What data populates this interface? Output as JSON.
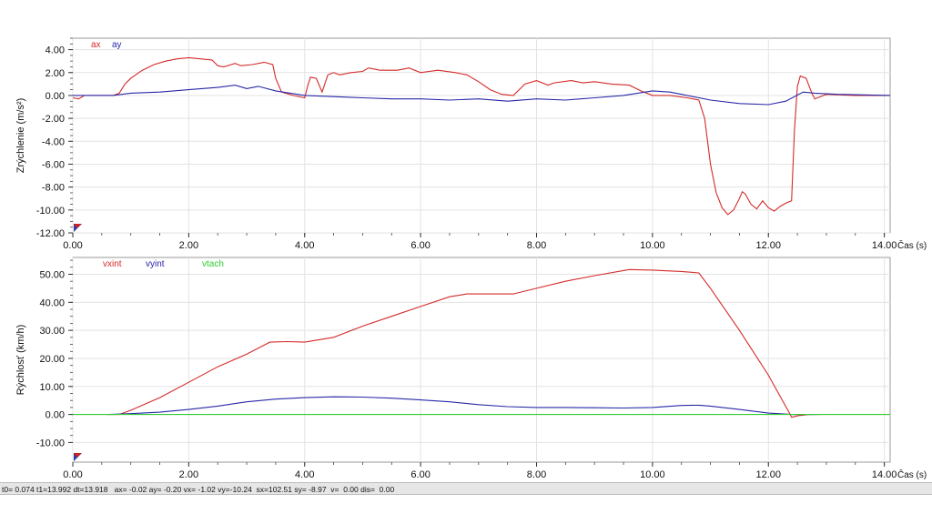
{
  "chart_data": [
    {
      "type": "line",
      "ylabel": "Zrýchlenie",
      "ylabel_unit": "(m/s²)",
      "xlabel": "Čas (s)",
      "xlim": [
        0,
        14.1
      ],
      "ylim": [
        -12,
        5
      ],
      "xticks": [
        0,
        2,
        4,
        6,
        8,
        10,
        12,
        14
      ],
      "xtick_labels": [
        "0.00",
        "2.00",
        "4.00",
        "6.00",
        "8.00",
        "10.00",
        "12.00",
        "14.00"
      ],
      "yticks": [
        -12,
        -10,
        -8,
        -6,
        -4,
        -2,
        0,
        2,
        4
      ],
      "ytick_labels": [
        "-12.00",
        "-10.00",
        "-8.00",
        "-6.00",
        "-4.00",
        "-2.00",
        "0.00",
        "2.00",
        "4.00"
      ],
      "grid": true,
      "legend_position": "top-left",
      "series": [
        {
          "name": "ax",
          "color": "#d42a2a",
          "points": [
            [
              0,
              -0.2
            ],
            [
              0.1,
              -0.3
            ],
            [
              0.2,
              0.0
            ],
            [
              0.7,
              0.0
            ],
            [
              0.8,
              0.2
            ],
            [
              0.9,
              1.0
            ],
            [
              1.0,
              1.5
            ],
            [
              1.2,
              2.2
            ],
            [
              1.4,
              2.7
            ],
            [
              1.6,
              3.0
            ],
            [
              1.8,
              3.2
            ],
            [
              2.0,
              3.3
            ],
            [
              2.2,
              3.2
            ],
            [
              2.4,
              3.1
            ],
            [
              2.5,
              2.6
            ],
            [
              2.6,
              2.5
            ],
            [
              2.8,
              2.8
            ],
            [
              2.9,
              2.6
            ],
            [
              3.1,
              2.7
            ],
            [
              3.3,
              2.9
            ],
            [
              3.45,
              2.7
            ],
            [
              3.5,
              1.5
            ],
            [
              3.6,
              0.3
            ],
            [
              3.8,
              0.0
            ],
            [
              4.0,
              -0.2
            ],
            [
              4.05,
              0.8
            ],
            [
              4.1,
              1.6
            ],
            [
              4.2,
              1.5
            ],
            [
              4.3,
              0.3
            ],
            [
              4.4,
              1.8
            ],
            [
              4.5,
              2.0
            ],
            [
              4.6,
              1.8
            ],
            [
              4.8,
              2.0
            ],
            [
              5.0,
              2.1
            ],
            [
              5.1,
              2.4
            ],
            [
              5.3,
              2.2
            ],
            [
              5.6,
              2.2
            ],
            [
              5.8,
              2.4
            ],
            [
              6.0,
              2.0
            ],
            [
              6.3,
              2.2
            ],
            [
              6.6,
              2.0
            ],
            [
              6.8,
              1.8
            ],
            [
              7.0,
              1.2
            ],
            [
              7.2,
              0.5
            ],
            [
              7.4,
              0.1
            ],
            [
              7.6,
              0.0
            ],
            [
              7.8,
              1.0
            ],
            [
              8.0,
              1.3
            ],
            [
              8.2,
              0.9
            ],
            [
              8.3,
              1.1
            ],
            [
              8.6,
              1.3
            ],
            [
              8.8,
              1.1
            ],
            [
              9.0,
              1.2
            ],
            [
              9.3,
              1.0
            ],
            [
              9.6,
              0.9
            ],
            [
              9.8,
              0.4
            ],
            [
              10.0,
              0.0
            ],
            [
              10.3,
              0.0
            ],
            [
              10.6,
              -0.2
            ],
            [
              10.8,
              -0.4
            ],
            [
              10.9,
              -2.0
            ],
            [
              11.0,
              -6.0
            ],
            [
              11.1,
              -8.5
            ],
            [
              11.2,
              -9.8
            ],
            [
              11.3,
              -10.4
            ],
            [
              11.4,
              -10.0
            ],
            [
              11.5,
              -9.0
            ],
            [
              11.55,
              -8.4
            ],
            [
              11.6,
              -8.6
            ],
            [
              11.7,
              -9.5
            ],
            [
              11.8,
              -9.9
            ],
            [
              11.9,
              -9.2
            ],
            [
              12.0,
              -9.8
            ],
            [
              12.1,
              -10.1
            ],
            [
              12.2,
              -9.7
            ],
            [
              12.3,
              -9.4
            ],
            [
              12.4,
              -9.2
            ],
            [
              12.45,
              -3.0
            ],
            [
              12.5,
              0.8
            ],
            [
              12.55,
              1.7
            ],
            [
              12.65,
              1.5
            ],
            [
              12.75,
              0.2
            ],
            [
              12.8,
              -0.3
            ],
            [
              13.0,
              0.1
            ],
            [
              13.5,
              0.0
            ],
            [
              14.1,
              0.0
            ]
          ]
        },
        {
          "name": "ay",
          "color": "#2828a8",
          "points": [
            [
              0,
              0.0
            ],
            [
              0.7,
              0.0
            ],
            [
              1.0,
              0.2
            ],
            [
              1.5,
              0.3
            ],
            [
              2.0,
              0.5
            ],
            [
              2.5,
              0.7
            ],
            [
              2.8,
              0.9
            ],
            [
              3.0,
              0.6
            ],
            [
              3.2,
              0.8
            ],
            [
              3.5,
              0.4
            ],
            [
              4.0,
              0.0
            ],
            [
              4.5,
              -0.1
            ],
            [
              5.0,
              -0.2
            ],
            [
              5.5,
              -0.3
            ],
            [
              6.0,
              -0.3
            ],
            [
              6.5,
              -0.4
            ],
            [
              7.0,
              -0.3
            ],
            [
              7.5,
              -0.5
            ],
            [
              8.0,
              -0.3
            ],
            [
              8.5,
              -0.4
            ],
            [
              9.0,
              -0.2
            ],
            [
              9.5,
              0.0
            ],
            [
              10.0,
              0.4
            ],
            [
              10.3,
              0.3
            ],
            [
              10.5,
              0.1
            ],
            [
              11.0,
              -0.4
            ],
            [
              11.5,
              -0.7
            ],
            [
              12.0,
              -0.8
            ],
            [
              12.3,
              -0.5
            ],
            [
              12.6,
              0.3
            ],
            [
              12.8,
              0.2
            ],
            [
              13.2,
              0.1
            ],
            [
              14.1,
              0.0
            ]
          ]
        }
      ]
    },
    {
      "type": "line",
      "ylabel": "Rýchlosť (km/h)",
      "xlabel": "Čas (s)",
      "xlim": [
        0,
        14.1
      ],
      "ylim": [
        -17,
        56
      ],
      "xticks": [
        0,
        2,
        4,
        6,
        8,
        10,
        12,
        14
      ],
      "xtick_labels": [
        "0.00",
        "2.00",
        "4.00",
        "6.00",
        "8.00",
        "10.00",
        "12.00",
        "14.00"
      ],
      "yticks": [
        -10,
        0,
        10,
        20,
        30,
        40,
        50
      ],
      "ytick_labels": [
        "-10.00",
        "0.00",
        "10.00",
        "20.00",
        "30.00",
        "40.00",
        "50.00"
      ],
      "grid": true,
      "legend_position": "top-left",
      "series": [
        {
          "name": "vxint",
          "color": "#d42a2a",
          "points": [
            [
              0.6,
              0.0
            ],
            [
              0.8,
              0.0
            ],
            [
              1.0,
              1.5
            ],
            [
              1.5,
              6.0
            ],
            [
              2.0,
              11.5
            ],
            [
              2.5,
              17.0
            ],
            [
              3.0,
              21.5
            ],
            [
              3.4,
              25.8
            ],
            [
              3.7,
              26.0
            ],
            [
              4.0,
              25.8
            ],
            [
              4.5,
              27.5
            ],
            [
              5.0,
              31.5
            ],
            [
              5.5,
              35.0
            ],
            [
              6.0,
              38.5
            ],
            [
              6.5,
              42.0
            ],
            [
              6.8,
              43.0
            ],
            [
              7.3,
              43.0
            ],
            [
              7.6,
              43.0
            ],
            [
              8.0,
              45.0
            ],
            [
              8.5,
              47.5
            ],
            [
              9.0,
              49.5
            ],
            [
              9.6,
              51.7
            ],
            [
              10.0,
              51.5
            ],
            [
              10.5,
              51.0
            ],
            [
              10.8,
              50.5
            ],
            [
              11.0,
              45.0
            ],
            [
              11.5,
              30.0
            ],
            [
              12.0,
              14.0
            ],
            [
              12.35,
              1.0
            ],
            [
              12.4,
              -1.0
            ],
            [
              12.5,
              -0.5
            ],
            [
              12.7,
              0.0
            ],
            [
              12.9,
              0.0
            ]
          ]
        },
        {
          "name": "vyint",
          "color": "#2828a8",
          "points": [
            [
              0.6,
              0.0
            ],
            [
              1.0,
              0.3
            ],
            [
              1.5,
              0.8
            ],
            [
              2.0,
              1.8
            ],
            [
              2.5,
              3.0
            ],
            [
              3.0,
              4.5
            ],
            [
              3.5,
              5.5
            ],
            [
              4.0,
              6.0
            ],
            [
              4.5,
              6.3
            ],
            [
              5.0,
              6.2
            ],
            [
              5.5,
              5.8
            ],
            [
              6.0,
              5.2
            ],
            [
              6.5,
              4.5
            ],
            [
              7.0,
              3.5
            ],
            [
              7.5,
              2.8
            ],
            [
              8.0,
              2.5
            ],
            [
              8.5,
              2.5
            ],
            [
              9.0,
              2.4
            ],
            [
              9.5,
              2.3
            ],
            [
              10.0,
              2.5
            ],
            [
              10.5,
              3.2
            ],
            [
              10.8,
              3.3
            ],
            [
              11.0,
              3.0
            ],
            [
              11.5,
              1.8
            ],
            [
              12.0,
              0.5
            ],
            [
              12.4,
              0.0
            ],
            [
              12.8,
              0.0
            ]
          ]
        },
        {
          "name": "vtach",
          "color": "#33cc33",
          "points": [
            [
              0,
              0.0
            ],
            [
              14.1,
              0.0
            ]
          ]
        }
      ]
    }
  ],
  "status": {
    "text": "t0= 0.074 t1=13.992 dt=13.918   ax= -0.02 ay= -0.20 vx= -1.02 vy=-10.24  sx=102.51 sy= -8.97  v=  0.00 dis=  0.00"
  }
}
